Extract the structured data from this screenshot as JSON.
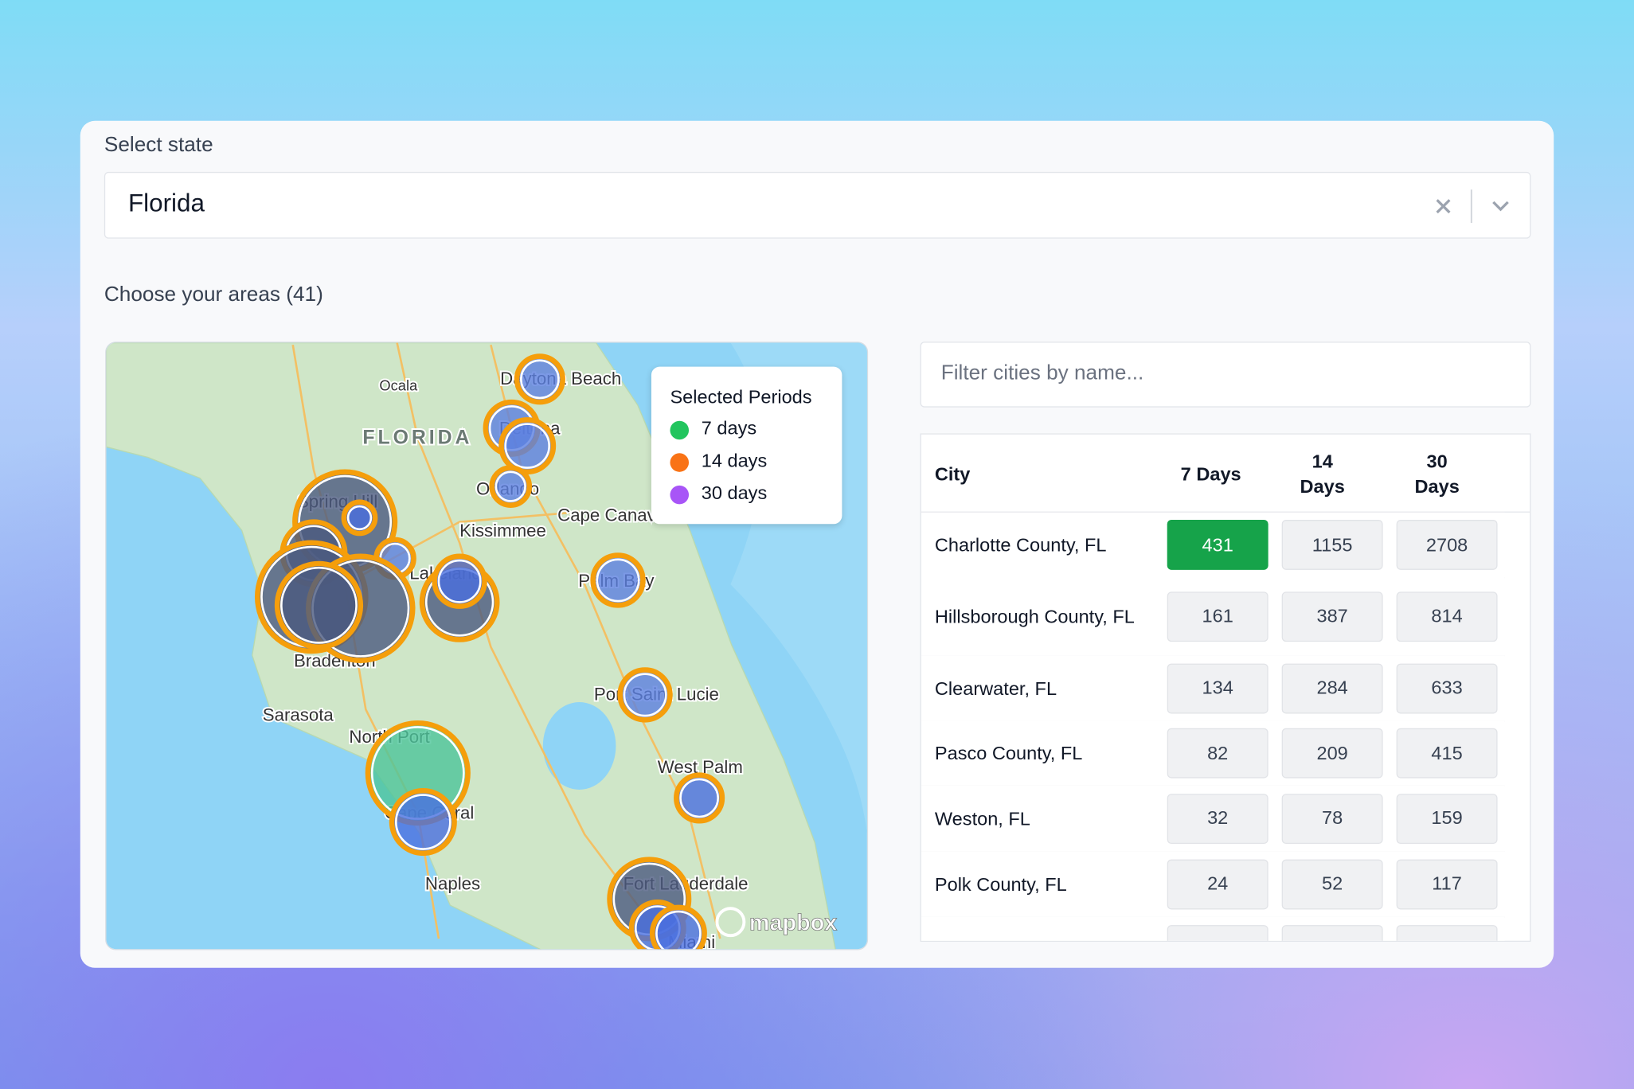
{
  "select_state": {
    "label": "Select state",
    "value": "Florida"
  },
  "areas_heading": "Choose your areas (41)",
  "map": {
    "labels": [
      "Ocala",
      "FLORIDA",
      "Daytona Beach",
      "Deltona",
      "Orlando",
      "Kissimmee",
      "Cape Canaveral",
      "Spring Hill",
      "Lakeland",
      "Palm Bay",
      "Port Saint Lucie",
      "West Palm",
      "Bradenton",
      "Sarasota",
      "North Port",
      "Cape Coral",
      "Naples",
      "Fort Lauderdale",
      "Miami"
    ],
    "legend": {
      "title": "Selected Periods",
      "items": [
        {
          "label": "7 days",
          "color": "#22c55e"
        },
        {
          "label": "14 days",
          "color": "#f97316"
        },
        {
          "label": "30 days",
          "color": "#a855f7"
        }
      ]
    },
    "attribution": "mapbox"
  },
  "filter_placeholder": "Filter cities by name...",
  "table": {
    "columns": [
      "City",
      "7 Days",
      "14 Days",
      "30 Days"
    ],
    "rows": [
      [
        "Charlotte County, FL",
        431,
        1155,
        2708
      ],
      [
        "Hillsborough County, FL",
        161,
        387,
        814
      ],
      [
        "Clearwater, FL",
        134,
        284,
        633
      ],
      [
        "Pasco County, FL",
        82,
        209,
        415
      ],
      [
        "Weston, FL",
        32,
        78,
        159
      ],
      [
        "Polk County, FL",
        24,
        52,
        117
      ]
    ]
  }
}
